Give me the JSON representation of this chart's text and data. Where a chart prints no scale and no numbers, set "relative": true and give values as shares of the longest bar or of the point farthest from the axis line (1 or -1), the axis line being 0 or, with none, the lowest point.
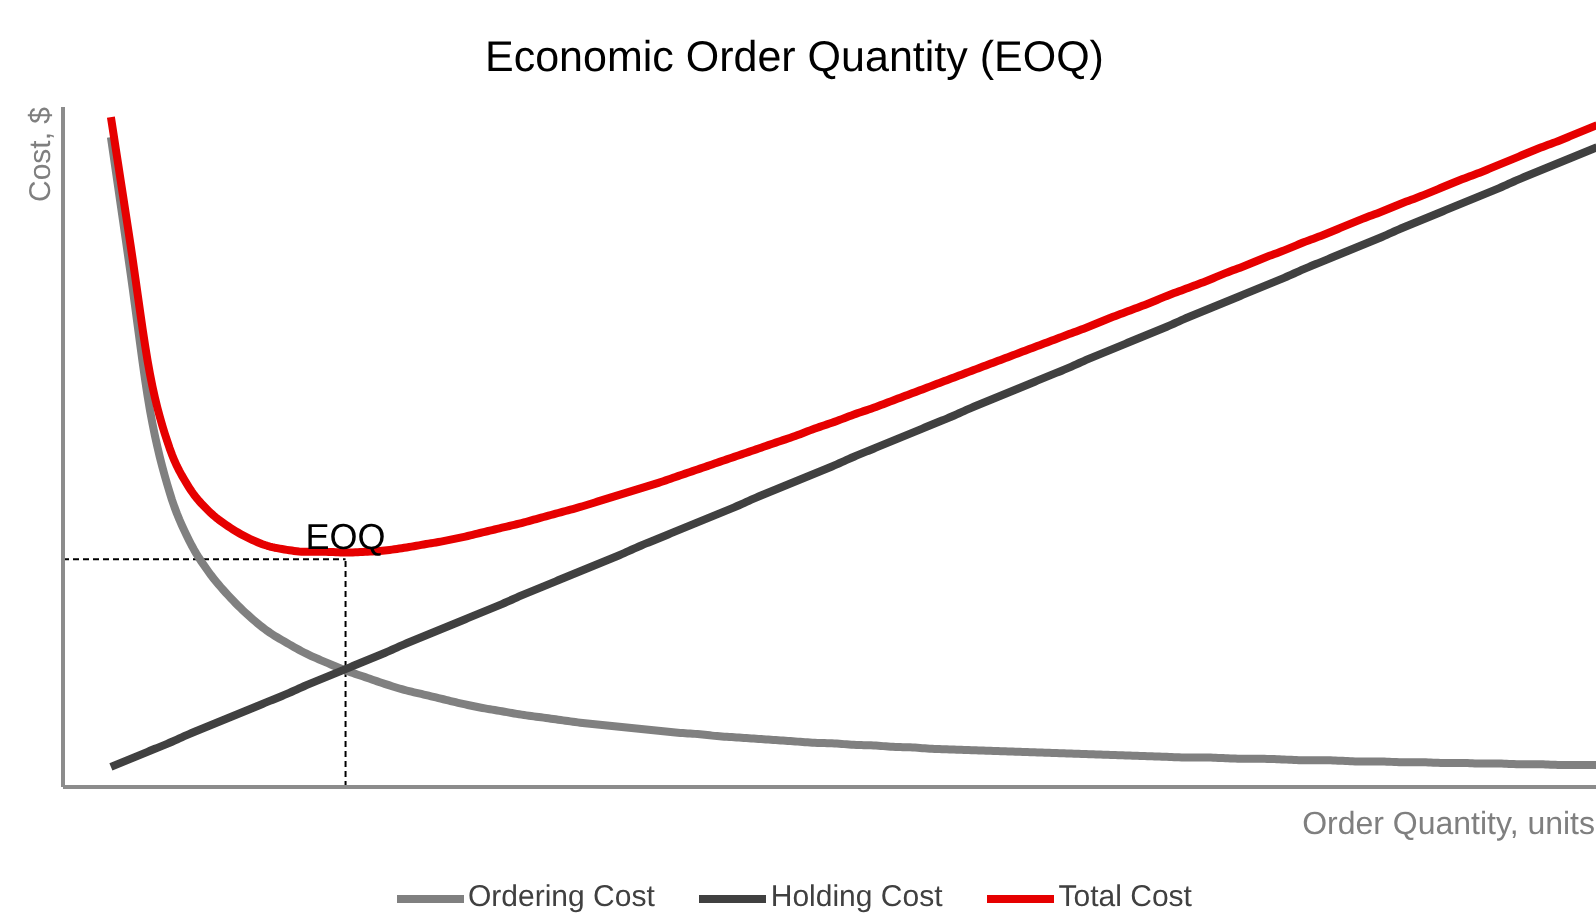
{
  "chart_data": {
    "type": "line",
    "title": "Economic Order Quantity (EOQ)",
    "xlabel": "Order Quantity, units",
    "ylabel": "Cost, $",
    "relative": true,
    "legend": "bottom",
    "categories": [
      null,
      null,
      null,
      null,
      null,
      null,
      null,
      null,
      null,
      null,
      null,
      null,
      null,
      null,
      null,
      null,
      null,
      null,
      null,
      null,
      null,
      null,
      null,
      null,
      null,
      null,
      null,
      null,
      null,
      null,
      null,
      null,
      null,
      null,
      null,
      null,
      null,
      null,
      null,
      null,
      null,
      null,
      null,
      null,
      null,
      null,
      null,
      null,
      null,
      null,
      null,
      null,
      null,
      null,
      null,
      null,
      null,
      null,
      null,
      null,
      null,
      null,
      null,
      null,
      null,
      null,
      null,
      null,
      null,
      null,
      null,
      null,
      null,
      null,
      null,
      null,
      null
    ],
    "series": [
      {
        "name": "Ordering Cost",
        "color": "#808080",
        "values": [
          0.97,
          0.768,
          0.562,
          0.44,
          0.368,
          0.321,
          0.286,
          0.257,
          0.233,
          0.215,
          0.199,
          0.186,
          0.174,
          0.164,
          0.154,
          0.145,
          0.138,
          0.131,
          0.124,
          0.118,
          0.113,
          0.108,
          0.104,
          0.1,
          0.096,
          0.093,
          0.09,
          0.087,
          0.084,
          0.081,
          0.079,
          0.076,
          0.074,
          0.072,
          0.07,
          0.068,
          0.066,
          0.065,
          0.063,
          0.062,
          0.06,
          0.059,
          0.057,
          0.056,
          0.055,
          0.054,
          0.053,
          0.052,
          0.051,
          0.05,
          0.049,
          0.048,
          0.047,
          0.046,
          0.045,
          0.044,
          0.044,
          0.043,
          0.042,
          0.042,
          0.041,
          0.04,
          0.04,
          0.039,
          0.038,
          0.038,
          0.037,
          0.037,
          0.036,
          0.036,
          0.035,
          0.035,
          0.034,
          0.034,
          0.033,
          0.033,
          0.033
        ]
      },
      {
        "name": "Holding Cost",
        "color": "#404040",
        "values": [
          0.03,
          0.042,
          0.054,
          0.066,
          0.079,
          0.091,
          0.103,
          0.115,
          0.127,
          0.139,
          0.152,
          0.164,
          0.176,
          0.188,
          0.2,
          0.213,
          0.225,
          0.237,
          0.249,
          0.261,
          0.273,
          0.286,
          0.298,
          0.31,
          0.322,
          0.334,
          0.346,
          0.359,
          0.371,
          0.383,
          0.395,
          0.407,
          0.419,
          0.432,
          0.444,
          0.456,
          0.468,
          0.48,
          0.493,
          0.505,
          0.517,
          0.529,
          0.541,
          0.553,
          0.566,
          0.578,
          0.59,
          0.602,
          0.614,
          0.626,
          0.639,
          0.651,
          0.663,
          0.675,
          0.687,
          0.7,
          0.712,
          0.724,
          0.736,
          0.748,
          0.76,
          0.773,
          0.785,
          0.797,
          0.809,
          0.821,
          0.834,
          0.846,
          0.858,
          0.87,
          0.882,
          0.894,
          0.907,
          0.919,
          0.931,
          0.943,
          0.955
        ]
      },
      {
        "name": "Total Cost",
        "color": "#e60000",
        "values": [
          1,
          0.81,
          0.616,
          0.506,
          0.447,
          0.412,
          0.389,
          0.372,
          0.36,
          0.354,
          0.351,
          0.351,
          0.35,
          0.351,
          0.353,
          0.357,
          0.362,
          0.367,
          0.373,
          0.38,
          0.387,
          0.394,
          0.402,
          0.41,
          0.418,
          0.427,
          0.436,
          0.445,
          0.454,
          0.464,
          0.474,
          0.484,
          0.494,
          0.504,
          0.514,
          0.524,
          0.535,
          0.545,
          0.556,
          0.566,
          0.577,
          0.588,
          0.599,
          0.61,
          0.621,
          0.632,
          0.643,
          0.654,
          0.665,
          0.676,
          0.687,
          0.699,
          0.71,
          0.721,
          0.733,
          0.744,
          0.755,
          0.767,
          0.778,
          0.79,
          0.801,
          0.813,
          0.824,
          0.836,
          0.848,
          0.859,
          0.871,
          0.882,
          0.894,
          0.906,
          0.917,
          0.929,
          0.941,
          0.953,
          0.964,
          0.976,
          0.988
        ]
      }
    ],
    "ref_lines": [
      {
        "axis": "y",
        "value": 0.34,
        "color": "#000000",
        "line_style": "dashed"
      }
    ],
    "annotations": [
      {
        "text": "EOQ",
        "y": 0.35
      }
    ]
  }
}
